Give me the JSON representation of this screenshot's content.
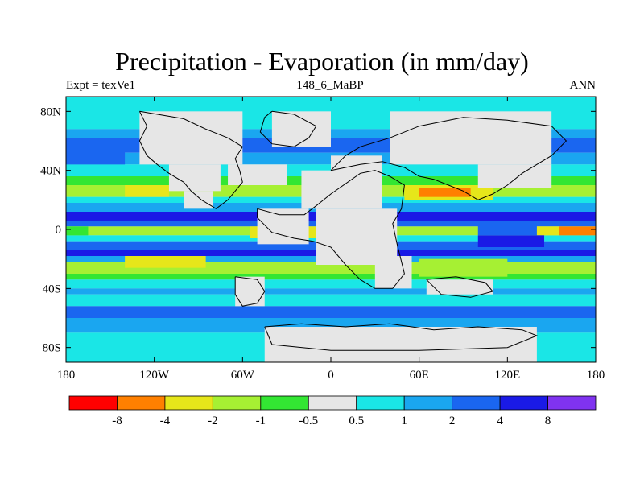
{
  "chart_data": {
    "type": "heatmap",
    "title": "Precipitation - Evaporation (in mm/day)",
    "subtitle_left": "Expt = texVe1",
    "subtitle_center": "148_6_MaBP",
    "subtitle_right": "ANN",
    "xlabel": "",
    "ylabel": "",
    "xlim": [
      -180,
      180
    ],
    "ylim": [
      -90,
      90
    ],
    "x_ticks": [
      {
        "value": -180,
        "label": "180"
      },
      {
        "value": -120,
        "label": "120W"
      },
      {
        "value": -60,
        "label": "60W"
      },
      {
        "value": 0,
        "label": "0"
      },
      {
        "value": 60,
        "label": "60E"
      },
      {
        "value": 120,
        "label": "120E"
      },
      {
        "value": 180,
        "label": "180"
      }
    ],
    "y_ticks": [
      {
        "value": 80,
        "label": "80N"
      },
      {
        "value": 40,
        "label": "40N"
      },
      {
        "value": 0,
        "label": "0"
      },
      {
        "value": -40,
        "label": "40S"
      },
      {
        "value": -80,
        "label": "80S"
      }
    ],
    "colorbar": {
      "colors": [
        "#ff0000",
        "#ff8000",
        "#e6e61a",
        "#a6f033",
        "#33e633",
        "#e6e6e6",
        "#1ae6e6",
        "#1aa6f0",
        "#1a66f0",
        "#1a1ae6",
        "#8033f0"
      ],
      "labels": [
        "-8",
        "-4",
        "-2",
        "-1",
        "-0.5",
        "0.5",
        "1",
        "2",
        "4",
        "8"
      ]
    },
    "background_level": 5,
    "zonal_bands": [
      {
        "lat": [
          68,
          90
        ],
        "level": 6
      },
      {
        "lat": [
          62,
          68
        ],
        "level": 7
      },
      {
        "lat": [
          52,
          62
        ],
        "level": 8
      },
      {
        "lat": [
          44,
          52
        ],
        "level": 7
      },
      {
        "lat": [
          36,
          44
        ],
        "level": 6
      },
      {
        "lat": [
          30,
          36
        ],
        "level": 4
      },
      {
        "lat": [
          22,
          30
        ],
        "level": 3
      },
      {
        "lat": [
          18,
          22
        ],
        "level": 6
      },
      {
        "lat": [
          12,
          18
        ],
        "level": 7
      },
      {
        "lat": [
          6,
          12
        ],
        "level": 9
      },
      {
        "lat": [
          2,
          6
        ],
        "level": 8
      },
      {
        "lat": [
          -4,
          2
        ],
        "level": 3
      },
      {
        "lat": [
          -8,
          -4
        ],
        "level": 6
      },
      {
        "lat": [
          -14,
          -8
        ],
        "level": 8
      },
      {
        "lat": [
          -18,
          -14
        ],
        "level": 9
      },
      {
        "lat": [
          -22,
          -18
        ],
        "level": 7
      },
      {
        "lat": [
          -30,
          -22
        ],
        "level": 3
      },
      {
        "lat": [
          -34,
          -30
        ],
        "level": 4
      },
      {
        "lat": [
          -40,
          -34
        ],
        "level": 6
      },
      {
        "lat": [
          -44,
          -40
        ],
        "level": 7
      },
      {
        "lat": [
          -52,
          -44
        ],
        "level": 6
      },
      {
        "lat": [
          -60,
          -52
        ],
        "level": 8
      },
      {
        "lat": [
          -70,
          -60
        ],
        "level": 7
      },
      {
        "lat": [
          -90,
          -70
        ],
        "level": 6
      }
    ],
    "patches": [
      {
        "lon": [
          -140,
          -85
        ],
        "lat": [
          -26,
          -18
        ],
        "level": 2
      },
      {
        "lon": [
          -140,
          -110
        ],
        "lat": [
          22,
          30
        ],
        "level": 2
      },
      {
        "lon": [
          -55,
          20
        ],
        "lat": [
          -6,
          2
        ],
        "level": 2
      },
      {
        "lon": [
          -180,
          -165
        ],
        "lat": [
          -4,
          2
        ],
        "level": 4
      },
      {
        "lon": [
          155,
          180
        ],
        "lat": [
          -4,
          2
        ],
        "level": 1
      },
      {
        "lon": [
          140,
          155
        ],
        "lat": [
          -4,
          2
        ],
        "level": 2
      },
      {
        "lon": [
          50,
          110
        ],
        "lat": [
          20,
          30
        ],
        "level": 2
      },
      {
        "lon": [
          60,
          95
        ],
        "lat": [
          22,
          28
        ],
        "level": 1
      },
      {
        "lon": [
          -15,
          15
        ],
        "lat": [
          22,
          30
        ],
        "level": 3
      },
      {
        "lon": [
          10,
          50
        ],
        "lat": [
          -30,
          -20
        ],
        "level": 3
      },
      {
        "lon": [
          60,
          120
        ],
        "lat": [
          -32,
          -20
        ],
        "level": 3
      },
      {
        "lon": [
          100,
          145
        ],
        "lat": [
          -12,
          -4
        ],
        "level": 9
      },
      {
        "lon": [
          100,
          140
        ],
        "lat": [
          -4,
          6
        ],
        "level": 8
      },
      {
        "lon": [
          -180,
          -140
        ],
        "lat": [
          44,
          56
        ],
        "level": 8
      },
      {
        "lon": [
          -70,
          -30
        ],
        "lat": [
          30,
          44
        ],
        "level": 5
      }
    ],
    "land": [
      {
        "lon": [
          -130,
          -60
        ],
        "lat": [
          44,
          80
        ],
        "level": 5
      },
      {
        "lon": [
          -110,
          -75
        ],
        "lat": [
          26,
          44
        ],
        "level": 5
      },
      {
        "lon": [
          -100,
          -80
        ],
        "lat": [
          14,
          26
        ],
        "level": 5
      },
      {
        "lon": [
          -40,
          0
        ],
        "lat": [
          56,
          80
        ],
        "level": 5
      },
      {
        "lon": [
          -20,
          35
        ],
        "lat": [
          14,
          40
        ],
        "level": 5
      },
      {
        "lon": [
          -50,
          -15
        ],
        "lat": [
          -10,
          14
        ],
        "level": 5
      },
      {
        "lon": [
          -10,
          45
        ],
        "lat": [
          -24,
          14
        ],
        "level": 5
      },
      {
        "lon": [
          30,
          55
        ],
        "lat": [
          -40,
          -18
        ],
        "level": 5
      },
      {
        "lon": [
          0,
          35
        ],
        "lat": [
          38,
          50
        ],
        "level": 5
      },
      {
        "lon": [
          40,
          150
        ],
        "lat": [
          44,
          80
        ],
        "level": 5
      },
      {
        "lon": [
          100,
          150
        ],
        "lat": [
          28,
          44
        ],
        "level": 5
      },
      {
        "lon": [
          -65,
          -45
        ],
        "lat": [
          -52,
          -32
        ],
        "level": 5
      },
      {
        "lon": [
          65,
          110
        ],
        "lat": [
          -44,
          -34
        ],
        "level": 5
      },
      {
        "lon": [
          -45,
          140
        ],
        "lat": [
          -90,
          -66
        ],
        "level": 5
      }
    ],
    "coastlines": [
      [
        [
          -130,
          80
        ],
        [
          -125,
          70
        ],
        [
          -130,
          60
        ],
        [
          -125,
          50
        ],
        [
          -118,
          44
        ],
        [
          -110,
          38
        ],
        [
          -100,
          32
        ],
        [
          -95,
          26
        ],
        [
          -88,
          20
        ],
        [
          -78,
          14
        ],
        [
          -70,
          20
        ],
        [
          -65,
          26
        ],
        [
          -60,
          32
        ],
        [
          -62,
          40
        ],
        [
          -65,
          48
        ],
        [
          -60,
          56
        ],
        [
          -70,
          62
        ],
        [
          -85,
          68
        ],
        [
          -100,
          75
        ],
        [
          -130,
          80
        ]
      ],
      [
        [
          -40,
          80
        ],
        [
          -25,
          78
        ],
        [
          -10,
          70
        ],
        [
          -15,
          62
        ],
        [
          -25,
          56
        ],
        [
          -40,
          58
        ],
        [
          -48,
          66
        ],
        [
          -45,
          76
        ],
        [
          -40,
          80
        ]
      ],
      [
        [
          -50,
          14
        ],
        [
          -35,
          10
        ],
        [
          -18,
          10
        ],
        [
          -10,
          16
        ],
        [
          0,
          24
        ],
        [
          20,
          38
        ],
        [
          30,
          40
        ],
        [
          40,
          36
        ],
        [
          50,
          30
        ],
        [
          48,
          14
        ],
        [
          42,
          4
        ],
        [
          45,
          -10
        ],
        [
          50,
          -30
        ],
        [
          42,
          -40
        ],
        [
          30,
          -40
        ],
        [
          20,
          -34
        ],
        [
          10,
          -24
        ],
        [
          0,
          -12
        ],
        [
          -12,
          -8
        ],
        [
          -25,
          -6
        ],
        [
          -40,
          -2
        ],
        [
          -50,
          8
        ],
        [
          -50,
          14
        ]
      ],
      [
        [
          0,
          40
        ],
        [
          10,
          50
        ],
        [
          20,
          56
        ],
        [
          40,
          62
        ],
        [
          60,
          70
        ],
        [
          90,
          76
        ],
        [
          120,
          74
        ],
        [
          150,
          70
        ],
        [
          160,
          60
        ],
        [
          150,
          50
        ],
        [
          140,
          44
        ],
        [
          130,
          38
        ],
        [
          120,
          30
        ],
        [
          110,
          24
        ],
        [
          100,
          20
        ],
        [
          90,
          26
        ],
        [
          80,
          30
        ],
        [
          70,
          34
        ],
        [
          60,
          36
        ],
        [
          50,
          42
        ],
        [
          35,
          46
        ],
        [
          20,
          44
        ],
        [
          10,
          42
        ],
        [
          0,
          40
        ]
      ],
      [
        [
          -65,
          -32
        ],
        [
          -50,
          -34
        ],
        [
          -45,
          -42
        ],
        [
          -50,
          -50
        ],
        [
          -60,
          -52
        ],
        [
          -65,
          -44
        ],
        [
          -65,
          -32
        ]
      ],
      [
        [
          65,
          -34
        ],
        [
          85,
          -32
        ],
        [
          105,
          -36
        ],
        [
          110,
          -42
        ],
        [
          95,
          -46
        ],
        [
          75,
          -44
        ],
        [
          65,
          -34
        ]
      ],
      [
        [
          -45,
          -66
        ],
        [
          -20,
          -64
        ],
        [
          10,
          -66
        ],
        [
          40,
          -64
        ],
        [
          70,
          -68
        ],
        [
          100,
          -66
        ],
        [
          130,
          -68
        ],
        [
          140,
          -72
        ],
        [
          120,
          -80
        ],
        [
          60,
          -82
        ],
        [
          0,
          -82
        ],
        [
          -40,
          -78
        ],
        [
          -45,
          -66
        ]
      ]
    ]
  }
}
